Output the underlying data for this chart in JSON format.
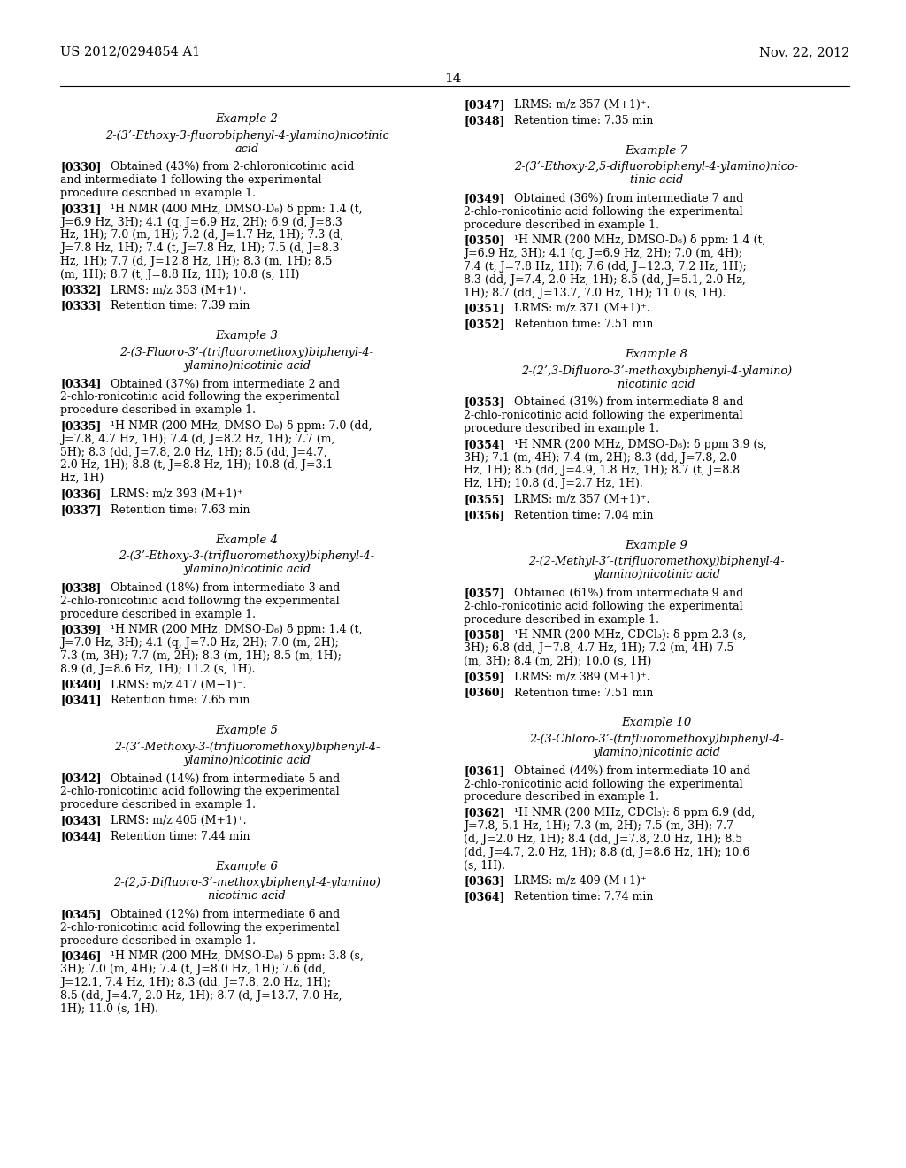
{
  "header_left": "US 2012/0294854 A1",
  "header_right": "Nov. 22, 2012",
  "page_number": "14",
  "background_color": "#ffffff",
  "left_column": [
    {
      "type": "example_title",
      "text": "Example 2"
    },
    {
      "type": "compound_name",
      "lines": [
        "2-(3’-Ethoxy-3-fluorobiphenyl-4-ylamino)nicotinic",
        "acid"
      ]
    },
    {
      "type": "paragraph",
      "tag": "[0330]",
      "text": "Obtained (43%) from 2-chloronicotinic acid and intermediate 1 following the experimental procedure described in example 1."
    },
    {
      "type": "paragraph",
      "tag": "[0331]",
      "text": "¹H NMR (400 MHz, DMSO-D₆) δ ppm: 1.4 (t, J=6.9 Hz, 3H); 4.1 (q, J=6.9 Hz, 2H); 6.9 (d, J=8.3 Hz, 1H); 7.0 (m, 1H); 7.2 (d, J=1.7 Hz, 1H); 7.3 (d, J=7.8 Hz, 1H); 7.4 (t, J=7.8 Hz, 1H); 7.5 (d, J=8.3 Hz, 1H); 7.7 (d, J=12.8 Hz, 1H); 8.3 (m, 1H); 8.5 (m, 1H); 8.7 (t, J=8.8 Hz, 1H); 10.8 (s, 1H)"
    },
    {
      "type": "paragraph",
      "tag": "[0332]",
      "text": "LRMS: m/z 353 (M+1)⁺."
    },
    {
      "type": "paragraph",
      "tag": "[0333]",
      "text": "Retention time: 7.39 min"
    },
    {
      "type": "example_title",
      "text": "Example 3"
    },
    {
      "type": "compound_name",
      "lines": [
        "2-(3-Fluoro-3’-(trifluoromethoxy)biphenyl-4-",
        "ylamino)nicotinic acid"
      ]
    },
    {
      "type": "paragraph",
      "tag": "[0334]",
      "text": "Obtained (37%) from intermediate 2 and 2-chlo-ronicotinic acid following the experimental procedure described in example 1."
    },
    {
      "type": "paragraph",
      "tag": "[0335]",
      "text": "¹H NMR (200 MHz, DMSO-D₆) δ ppm: 7.0 (dd, J=7.8, 4.7 Hz, 1H); 7.4 (d, J=8.2 Hz, 1H); 7.7 (m, 5H); 8.3 (dd, J=7.8, 2.0 Hz, 1H); 8.5 (dd, J=4.7, 2.0 Hz, 1H); 8.8 (t, J=8.8 Hz, 1H); 10.8 (d, J=3.1 Hz, 1H)"
    },
    {
      "type": "paragraph",
      "tag": "[0336]",
      "text": "LRMS: m/z 393 (M+1)⁺"
    },
    {
      "type": "paragraph",
      "tag": "[0337]",
      "text": "Retention time: 7.63 min"
    },
    {
      "type": "example_title",
      "text": "Example 4"
    },
    {
      "type": "compound_name",
      "lines": [
        "2-(3’-Ethoxy-3-(trifluoromethoxy)biphenyl-4-",
        "ylamino)nicotinic acid"
      ]
    },
    {
      "type": "paragraph",
      "tag": "[0338]",
      "text": "Obtained (18%) from intermediate 3 and 2-chlo-ronicotinic acid following the experimental procedure described in example 1."
    },
    {
      "type": "paragraph",
      "tag": "[0339]",
      "text": "¹H NMR (200 MHz, DMSO-D₆) δ ppm: 1.4 (t, J=7.0 Hz, 3H); 4.1 (q, J=7.0 Hz, 2H); 7.0 (m, 2H); 7.3 (m, 3H); 7.7 (m, 2H); 8.3 (m, 1H); 8.5 (m, 1H); 8.9 (d, J=8.6 Hz, 1H); 11.2 (s, 1H)."
    },
    {
      "type": "paragraph",
      "tag": "[0340]",
      "text": "LRMS: m/z 417 (M−1)⁻."
    },
    {
      "type": "paragraph",
      "tag": "[0341]",
      "text": "Retention time: 7.65 min"
    },
    {
      "type": "example_title",
      "text": "Example 5"
    },
    {
      "type": "compound_name",
      "lines": [
        "2-(3’-Methoxy-3-(trifluoromethoxy)biphenyl-4-",
        "ylamino)nicotinic acid"
      ]
    },
    {
      "type": "paragraph",
      "tag": "[0342]",
      "text": "Obtained (14%) from intermediate 5 and 2-chlo-ronicotinic acid following the experimental procedure described in example 1."
    },
    {
      "type": "paragraph",
      "tag": "[0343]",
      "text": "LRMS: m/z 405 (M+1)⁺."
    },
    {
      "type": "paragraph",
      "tag": "[0344]",
      "text": "Retention time: 7.44 min"
    },
    {
      "type": "example_title",
      "text": "Example 6"
    },
    {
      "type": "compound_name",
      "lines": [
        "2-(2,5-Difluoro-3’-methoxybiphenyl-4-ylamino)",
        "nicotinic acid"
      ]
    },
    {
      "type": "paragraph",
      "tag": "[0345]",
      "text": "Obtained (12%) from intermediate 6 and 2-chlo-ronicotinic acid following the experimental procedure described in example 1."
    },
    {
      "type": "paragraph",
      "tag": "[0346]",
      "text": "¹H NMR (200 MHz, DMSO-D₆) δ ppm: 3.8 (s, 3H); 7.0 (m, 4H); 7.4 (t, J=8.0 Hz, 1H); 7.6 (dd, J=12.1, 7.4 Hz, 1H); 8.3 (dd, J=7.8, 2.0 Hz, 1H); 8.5 (dd, J=4.7, 2.0 Hz, 1H); 8.7 (d, J=13.7, 7.0 Hz, 1H); 11.0 (s, 1H)."
    }
  ],
  "right_column": [
    {
      "type": "paragraph",
      "tag": "[0347]",
      "text": "LRMS: m/z 357 (M+1)⁺."
    },
    {
      "type": "paragraph",
      "tag": "[0348]",
      "text": "Retention time: 7.35 min"
    },
    {
      "type": "example_title",
      "text": "Example 7"
    },
    {
      "type": "compound_name",
      "lines": [
        "2-(3’-Ethoxy-2,5-difluorobiphenyl-4-ylamino)nico-",
        "tinic acid"
      ]
    },
    {
      "type": "paragraph",
      "tag": "[0349]",
      "text": "Obtained (36%) from intermediate 7 and 2-chlo-ronicotinic acid following the experimental procedure described in example 1."
    },
    {
      "type": "paragraph",
      "tag": "[0350]",
      "text": "¹H NMR (200 MHz, DMSO-D₆) δ ppm: 1.4 (t, J=6.9 Hz, 3H); 4.1 (q, J=6.9 Hz, 2H); 7.0 (m, 4H); 7.4 (t, J=7.8 Hz, 1H); 7.6 (dd, J=12.3, 7.2 Hz, 1H); 8.3 (dd, J=7.4, 2.0 Hz, 1H); 8.5 (dd, J=5.1, 2.0 Hz, 1H); 8.7 (dd, J=13.7, 7.0 Hz, 1H); 11.0 (s, 1H)."
    },
    {
      "type": "paragraph",
      "tag": "[0351]",
      "text": "LRMS: m/z 371 (M+1)⁺."
    },
    {
      "type": "paragraph",
      "tag": "[0352]",
      "text": "Retention time: 7.51 min"
    },
    {
      "type": "example_title",
      "text": "Example 8"
    },
    {
      "type": "compound_name",
      "lines": [
        "2-(2’,3-Difluoro-3’-methoxybiphenyl-4-ylamino)",
        "nicotinic acid"
      ]
    },
    {
      "type": "paragraph",
      "tag": "[0353]",
      "text": "Obtained (31%) from intermediate 8 and 2-chlo-ronicotinic acid following the experimental procedure described in example 1."
    },
    {
      "type": "paragraph",
      "tag": "[0354]",
      "text": "¹H NMR (200 MHz, DMSO-D₆): δ ppm 3.9 (s, 3H); 7.1 (m, 4H); 7.4 (m, 2H); 8.3 (dd, J=7.8, 2.0 Hz, 1H); 8.5 (dd, J=4.9, 1.8 Hz, 1H); 8.7 (t, J=8.8 Hz, 1H); 10.8 (d, J=2.7 Hz, 1H)."
    },
    {
      "type": "paragraph",
      "tag": "[0355]",
      "text": "LRMS: m/z 357 (M+1)⁺."
    },
    {
      "type": "paragraph",
      "tag": "[0356]",
      "text": "Retention time: 7.04 min"
    },
    {
      "type": "example_title",
      "text": "Example 9"
    },
    {
      "type": "compound_name",
      "lines": [
        "2-(2-Methyl-3’-(trifluoromethoxy)biphenyl-4-",
        "ylamino)nicotinic acid"
      ]
    },
    {
      "type": "paragraph",
      "tag": "[0357]",
      "text": "Obtained (61%) from intermediate 9 and 2-chlo-ronicotinic acid following the experimental procedure described in example 1."
    },
    {
      "type": "paragraph",
      "tag": "[0358]",
      "text": "¹H NMR (200 MHz, CDCl₃): δ ppm 2.3 (s, 3H); 6.8 (dd, J=7.8, 4.7 Hz, 1H); 7.2 (m, 4H) 7.5 (m, 3H); 8.4 (m, 2H); 10.0 (s, 1H)"
    },
    {
      "type": "paragraph",
      "tag": "[0359]",
      "text": "LRMS: m/z 389 (M+1)⁺."
    },
    {
      "type": "paragraph",
      "tag": "[0360]",
      "text": "Retention time: 7.51 min"
    },
    {
      "type": "example_title",
      "text": "Example 10"
    },
    {
      "type": "compound_name",
      "lines": [
        "2-(3-Chloro-3’-(trifluoromethoxy)biphenyl-4-",
        "ylamino)nicotinic acid"
      ]
    },
    {
      "type": "paragraph",
      "tag": "[0361]",
      "text": "Obtained (44%) from intermediate 10 and 2-chlo-ronicotinic acid following the experimental procedure described in example 1."
    },
    {
      "type": "paragraph",
      "tag": "[0362]",
      "text": "¹H NMR (200 MHz, CDCl₃): δ ppm 6.9 (dd, J=7.8, 5.1 Hz, 1H); 7.3 (m, 2H); 7.5 (m, 3H); 7.7 (d, J=2.0 Hz, 1H); 8.4 (dd, J=7.8, 2.0 Hz, 1H); 8.5 (dd, J=4.7, 2.0 Hz, 1H); 8.8 (d, J=8.6 Hz, 1H); 10.6 (s, 1H)."
    },
    {
      "type": "paragraph",
      "tag": "[0363]",
      "text": "LRMS: m/z 409 (M+1)⁺"
    },
    {
      "type": "paragraph",
      "tag": "[0364]",
      "text": "Retention time: 7.74 min"
    }
  ]
}
